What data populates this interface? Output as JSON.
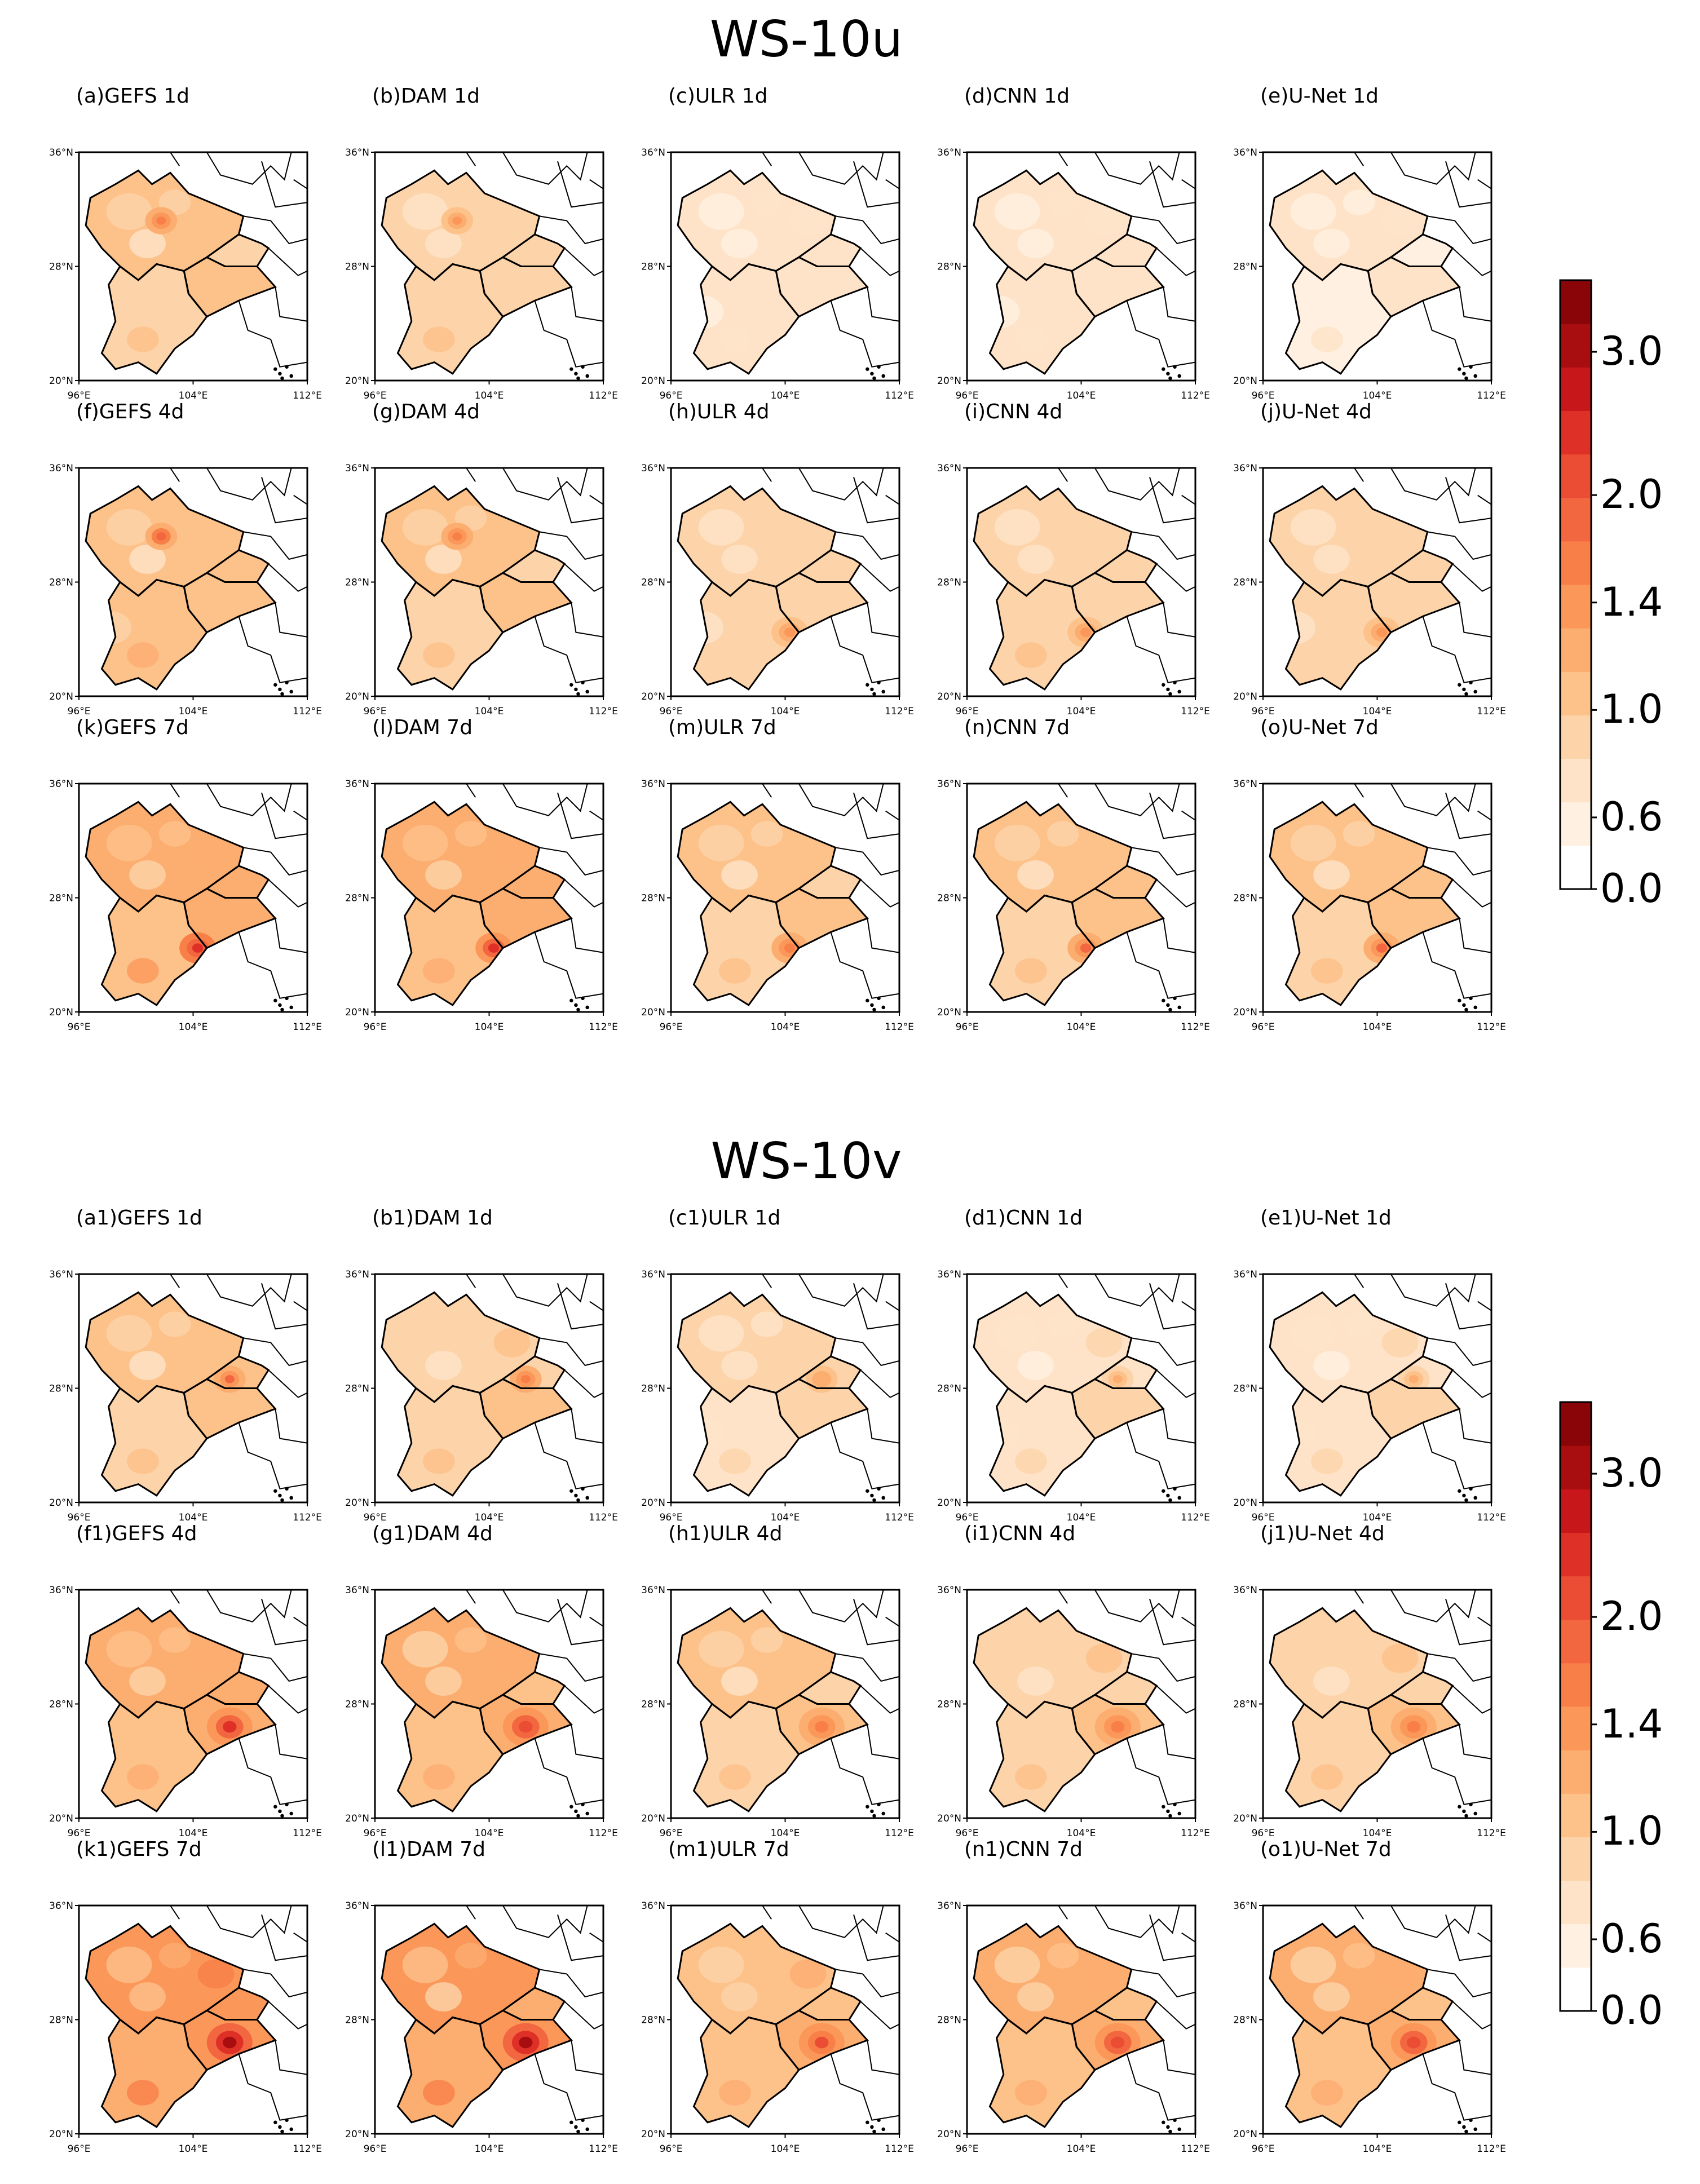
{
  "figure": {
    "sections": [
      {
        "title": "WS-10u",
        "panels": [
          {
            "label": "(a)GEFS 1d",
            "intensity": 0.95,
            "hotspot": "sichuan"
          },
          {
            "label": "(b)DAM 1d",
            "intensity": 0.8,
            "hotspot": "sichuan"
          },
          {
            "label": "(c)ULR 1d",
            "intensity": 0.45,
            "hotspot": "none"
          },
          {
            "label": "(d)CNN 1d",
            "intensity": 0.45,
            "hotspot": "none"
          },
          {
            "label": "(e)U-Net 1d",
            "intensity": 0.4,
            "hotspot": "none"
          },
          {
            "label": "(f)GEFS 4d",
            "intensity": 1.05,
            "hotspot": "sichuan"
          },
          {
            "label": "(g)DAM 4d",
            "intensity": 0.95,
            "hotspot": "sichuan"
          },
          {
            "label": "(h)ULR 4d",
            "intensity": 0.75,
            "hotspot": "yunnan"
          },
          {
            "label": "(i)CNN 4d",
            "intensity": 0.8,
            "hotspot": "yunnan"
          },
          {
            "label": "(j)U-Net 4d",
            "intensity": 0.75,
            "hotspot": "yunnan"
          },
          {
            "label": "(k)GEFS 7d",
            "intensity": 1.3,
            "hotspot": "yunnan"
          },
          {
            "label": "(l)DAM 7d",
            "intensity": 1.25,
            "hotspot": "yunnan"
          },
          {
            "label": "(m)ULR 7d",
            "intensity": 0.95,
            "hotspot": "yunnan"
          },
          {
            "label": "(n)CNN 7d",
            "intensity": 1.0,
            "hotspot": "yunnan"
          },
          {
            "label": "(o)U-Net 7d",
            "intensity": 1.0,
            "hotspot": "yunnan"
          }
        ],
        "colorbar": {
          "labels": [
            "3.0",
            "2.0",
            "1.4",
            "1.0",
            "0.6",
            "0.0"
          ]
        }
      },
      {
        "title": "WS-10v",
        "panels": [
          {
            "label": "(a1)GEFS 1d",
            "intensity": 1.0,
            "hotspot": "chongqing"
          },
          {
            "label": "(b1)DAM 1d",
            "intensity": 0.9,
            "hotspot": "chongqing"
          },
          {
            "label": "(c1)ULR 1d",
            "intensity": 0.7,
            "hotspot": "chongqing"
          },
          {
            "label": "(d1)CNN 1d",
            "intensity": 0.65,
            "hotspot": "chongqing"
          },
          {
            "label": "(e1)U-Net 1d",
            "intensity": 0.65,
            "hotspot": "chongqing"
          },
          {
            "label": "(f1)GEFS 4d",
            "intensity": 1.25,
            "hotspot": "guizhou"
          },
          {
            "label": "(g1)DAM 4d",
            "intensity": 1.2,
            "hotspot": "guizhou"
          },
          {
            "label": "(h1)ULR 4d",
            "intensity": 0.95,
            "hotspot": "guizhou"
          },
          {
            "label": "(i1)CNN 4d",
            "intensity": 0.9,
            "hotspot": "guizhou"
          },
          {
            "label": "(j1)U-Net 4d",
            "intensity": 0.9,
            "hotspot": "guizhou"
          },
          {
            "label": "(k1)GEFS 7d",
            "intensity": 1.55,
            "hotspot": "guizhou"
          },
          {
            "label": "(l1)DAM 7d",
            "intensity": 1.5,
            "hotspot": "guizhou"
          },
          {
            "label": "(m1)ULR 7d",
            "intensity": 1.15,
            "hotspot": "guizhou"
          },
          {
            "label": "(n1)CNN 7d",
            "intensity": 1.2,
            "hotspot": "guizhou"
          },
          {
            "label": "(o1)U-Net 7d",
            "intensity": 1.2,
            "hotspot": "guizhou"
          }
        ],
        "colorbar": {
          "labels": [
            "3.0",
            "2.0",
            "1.4",
            "1.0",
            "0.6",
            "0.0"
          ]
        }
      }
    ],
    "axis_ticks": {
      "lat": [
        "36°N",
        "28°N",
        "20°N"
      ],
      "lon": [
        "96°E",
        "104°E",
        "112°E"
      ]
    },
    "colorscale": [
      "#ffffff",
      "#fff0e1",
      "#fee3c8",
      "#fdd3a9",
      "#fdc18a",
      "#fcad70",
      "#fb9759",
      "#f88048",
      "#f26640",
      "#ea4c34",
      "#de3027",
      "#c8171a",
      "#a80d10",
      "#8a0507"
    ]
  }
}
